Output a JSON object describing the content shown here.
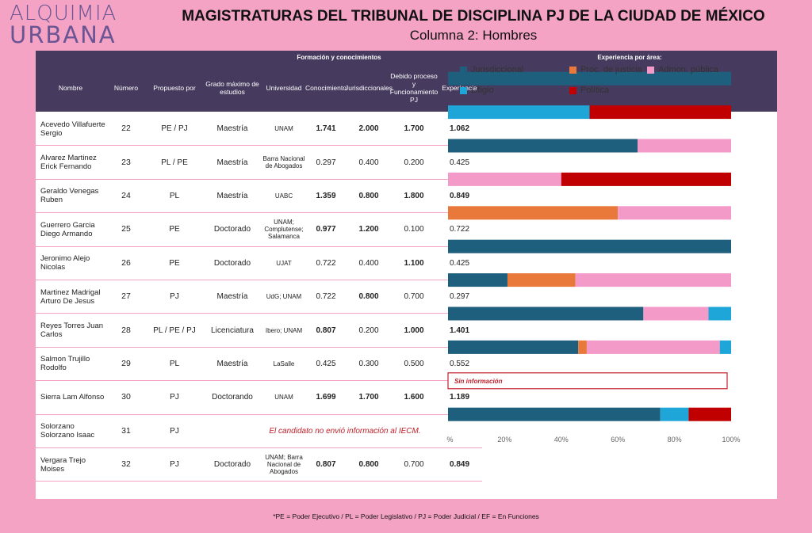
{
  "logo": {
    "line1": "ALQUIMIA",
    "line2": "URBANA"
  },
  "title": "MAGISTRATURAS DEL TRIBUNAL DE DISCIPLINA PJ DE LA CIUDAD DE MÉXICO",
  "subtitle": "Columna 2: Hombres",
  "table": {
    "group_left": "Formación y conocimientos",
    "group_right": "Experiencia por área:",
    "headers": [
      "Nombre",
      "Número",
      "Propuesto por",
      "Grado máximo de estudios",
      "Universidad",
      "Conocimiento",
      "Jurisdiccionales",
      "Debido proceso y Funcionamiento PJ",
      "Experiencia"
    ],
    "rows": [
      {
        "nombre": "Acevedo Villafuerte Sergio",
        "numero": "22",
        "propuesto": "PE / PJ",
        "grado": "Maestría",
        "universidad": "UNAM",
        "conocimiento": "1.741",
        "jurisdiccionales": "2.000",
        "debido": "1.700",
        "experiencia": "1.062"
      },
      {
        "nombre": "Alvarez Martinez Erick Fernando",
        "numero": "23",
        "propuesto": "PL / PE",
        "grado": "Maestría",
        "universidad": "Barra Nacional de Abogados",
        "conocimiento": "0.297",
        "jurisdiccionales": "0.400",
        "debido": "0.200",
        "experiencia": "0.425"
      },
      {
        "nombre": "Geraldo Venegas Ruben",
        "numero": "24",
        "propuesto": "PL",
        "grado": "Maestría",
        "universidad": "UABC",
        "conocimiento": "1.359",
        "jurisdiccionales": "0.800",
        "debido": "1.800",
        "experiencia": "0.849"
      },
      {
        "nombre": "Guerrero Garcia Diego Armando",
        "numero": "25",
        "propuesto": "PE",
        "grado": "Doctorado",
        "universidad": "UNAM; Complutense; Salamanca",
        "conocimiento": "0.977",
        "jurisdiccionales": "1.200",
        "debido": "0.100",
        "experiencia": "0.722"
      },
      {
        "nombre": "Jeronimo Alejo Nicolas",
        "numero": "26",
        "propuesto": "PE",
        "grado": "Doctorado",
        "universidad": "UJAT",
        "conocimiento": "0.722",
        "jurisdiccionales": "0.400",
        "debido": "1.100",
        "experiencia": "0.425"
      },
      {
        "nombre": "Martinez Madrigal Arturo De Jesus",
        "numero": "27",
        "propuesto": "PJ",
        "grado": "Maestría",
        "universidad": "UdG; UNAM",
        "conocimiento": "0.722",
        "jurisdiccionales": "0.800",
        "debido": "0.700",
        "experiencia": "0.297"
      },
      {
        "nombre": "Reyes Torres Juan Carlos",
        "numero": "28",
        "propuesto": "PL / PE / PJ",
        "grado": "Licenciatura",
        "universidad": "Ibero; UNAM",
        "conocimiento": "0.807",
        "jurisdiccionales": "0.200",
        "debido": "1.000",
        "experiencia": "1.401"
      },
      {
        "nombre": "Salmon Trujillo Rodolfo",
        "numero": "29",
        "propuesto": "PL",
        "grado": "Maestría",
        "universidad": "LaSalle",
        "conocimiento": "0.425",
        "jurisdiccionales": "0.300",
        "debido": "0.500",
        "experiencia": "0.552"
      },
      {
        "nombre": "Sierra Lam Alfonso",
        "numero": "30",
        "propuesto": "PJ",
        "grado": "Doctorando",
        "universidad": "UNAM",
        "conocimiento": "1.699",
        "jurisdiccionales": "1.700",
        "debido": "1.600",
        "experiencia": "1.189"
      },
      {
        "nombre": "Solorzano Solorzano Isaac",
        "numero": "31",
        "propuesto": "PJ",
        "grado": "",
        "universidad": "",
        "conocimiento": "",
        "jurisdiccionales": "",
        "debido": "",
        "experiencia": "",
        "message": "El candidato no envió información al IECM."
      },
      {
        "nombre": "Vergara Trejo Moises",
        "numero": "32",
        "propuesto": "PJ",
        "grado": "Doctorado",
        "universidad": "UNAM; Barra Nacional de Abogados",
        "conocimiento": "0.807",
        "jurisdiccionales": "0.800",
        "debido": "0.700",
        "experiencia": "0.849"
      }
    ]
  },
  "chart_data": {
    "type": "bar",
    "orientation": "horizontal",
    "stacked": "percent",
    "title": "Experiencia por área:",
    "categories": [
      "Acevedo Villafuerte Sergio",
      "Alvarez Martinez Erick Fernando",
      "Geraldo Venegas Ruben",
      "Guerrero Garcia Diego Armando",
      "Jeronimo Alejo Nicolas",
      "Martinez Madrigal Arturo De Jesus",
      "Reyes Torres Juan Carlos",
      "Salmon Trujillo Rodolfo",
      "Sierra Lam Alfonso",
      "Solorzano Solorzano Isaac",
      "Vergara Trejo Moises"
    ],
    "series": [
      {
        "name": "Jurisdiccional",
        "color": "#1f5f7e",
        "values": [
          100,
          0,
          67,
          0,
          0,
          100,
          21,
          69,
          46,
          0,
          75
        ]
      },
      {
        "name": "Proc. de justicia",
        "color": "#e8793a",
        "values": [
          0,
          0,
          0,
          0,
          60,
          0,
          24,
          0,
          3,
          0,
          0
        ]
      },
      {
        "name": "Admon. pública",
        "color": "#f49ac9",
        "values": [
          0,
          0,
          33,
          40,
          40,
          0,
          55,
          23,
          47,
          0,
          0
        ]
      },
      {
        "name": "Litigio",
        "color": "#1ea6d8",
        "values": [
          0,
          50,
          0,
          0,
          0,
          0,
          0,
          8,
          4,
          0,
          10
        ]
      },
      {
        "name": "Política",
        "color": "#c00000",
        "values": [
          0,
          50,
          0,
          60,
          0,
          0,
          0,
          0,
          0,
          0,
          15
        ]
      }
    ],
    "no_data_label": "Sin información",
    "no_data_index": 9,
    "xlim": [
      0,
      100
    ],
    "x_ticks": [
      "0%",
      "20%",
      "40%",
      "60%",
      "80%",
      "100%"
    ],
    "legend": "top",
    "grid": false
  },
  "footnote": "*PE = Poder Ejecutivo / PL = Poder Legislativo / PJ = Poder Judicial / EF = En Funciones"
}
